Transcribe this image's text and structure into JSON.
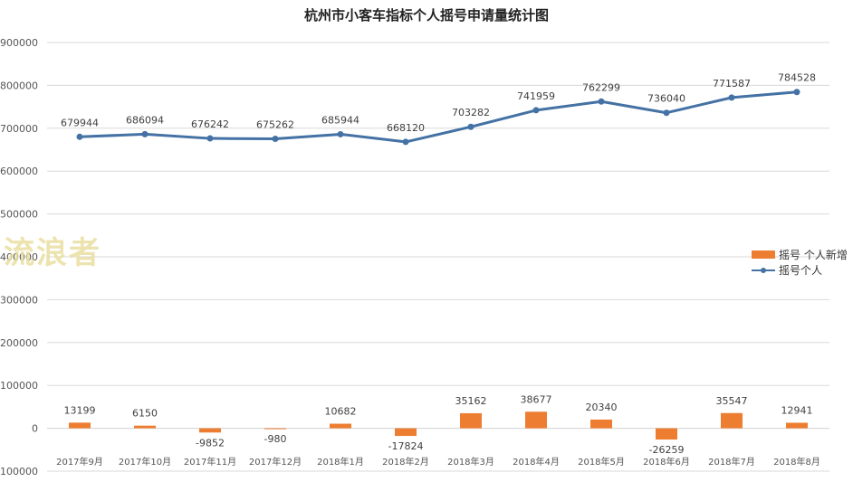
{
  "title": "杭州市小客车指标个人摇号申请量统计图",
  "watermark": "流浪者",
  "colors": {
    "line": "#4472a4",
    "bar": "#ed7d31",
    "grid": "#d9d9d9"
  },
  "chart_data": {
    "type": "bar+line",
    "title": "杭州市小客车指标个人摇号申请量统计图",
    "categories": [
      "2017年9月",
      "2017年10月",
      "2017年11月",
      "2017年12月",
      "2018年1月",
      "2018年2月",
      "2018年3月",
      "2018年4月",
      "2018年5月",
      "2018年6月",
      "2018年7月",
      "2018年8月"
    ],
    "series": [
      {
        "name": "摇号 个人新增",
        "kind": "bar",
        "values": [
          13199,
          6150,
          -9852,
          -980,
          10682,
          -17824,
          35162,
          38677,
          20340,
          -26259,
          35547,
          12941
        ]
      },
      {
        "name": "摇号个人",
        "kind": "line",
        "values": [
          679944,
          686094,
          676242,
          675262,
          685944,
          668120,
          703282,
          741959,
          762299,
          736040,
          771587,
          784528
        ]
      }
    ],
    "data_labels": {
      "bar": [
        "13199",
        "6150",
        "-9852",
        "-980",
        "10682",
        "-17824",
        "35162",
        "38677",
        "20340",
        "-26259",
        "35547",
        "12941"
      ],
      "line": [
        "679944",
        "686094",
        "676242",
        "675262",
        "685944",
        "668120",
        "703282",
        "741959",
        "762299",
        "736040",
        "771587",
        "784528"
      ]
    },
    "yticks": [
      "-100000",
      "0",
      "100000",
      "200000",
      "300000",
      "400000",
      "500000",
      "600000",
      "700000",
      "800000",
      "900000"
    ],
    "ylim": [
      -100000,
      900000
    ],
    "grid": true,
    "legend_position": "right"
  }
}
